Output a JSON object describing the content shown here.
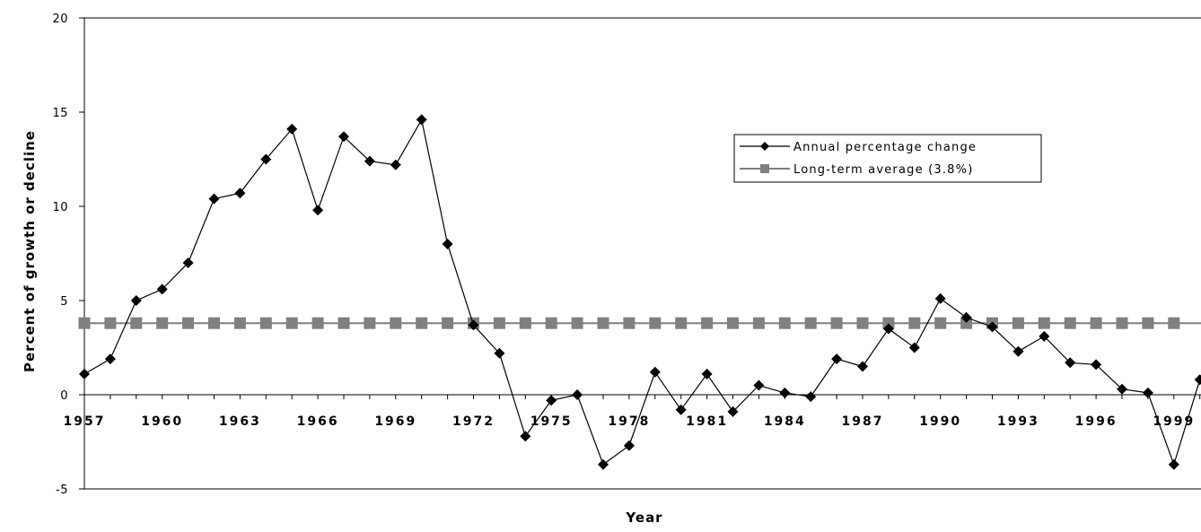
{
  "chart_data": {
    "type": "line",
    "title": "",
    "xlabel": "Year",
    "ylabel": "Percent of growth or decline",
    "ylim": [
      -5,
      20
    ],
    "yticks": [
      -5,
      0,
      5,
      10,
      15,
      20
    ],
    "xticks": [
      1957,
      1960,
      1963,
      1966,
      1969,
      1972,
      1975,
      1978,
      1981,
      1984,
      1987,
      1990,
      1993,
      1996,
      1999
    ],
    "xtick_labels": [
      "1957",
      "1960",
      "1963",
      "1966",
      "1969",
      "1972",
      "1975",
      "1978",
      "1981",
      "1984",
      "1987",
      "1990",
      "1993",
      "1996",
      "1999"
    ],
    "grid": false,
    "legend_position": "right-center",
    "x": [
      1957,
      1958,
      1959,
      1960,
      1961,
      1962,
      1963,
      1964,
      1965,
      1966,
      1967,
      1968,
      1969,
      1970,
      1971,
      1972,
      1973,
      1974,
      1975,
      1976,
      1977,
      1978,
      1979,
      1980,
      1981,
      1982,
      1983,
      1984,
      1985,
      1986,
      1987,
      1988,
      1989,
      1990,
      1991,
      1992,
      1993,
      1994,
      1995,
      1996,
      1997,
      1998,
      1999,
      2000
    ],
    "series": [
      {
        "name": "Annual percentage change",
        "color": "#000000",
        "marker": "diamond",
        "values": [
          1.1,
          1.9,
          5.0,
          5.6,
          7.0,
          10.4,
          10.7,
          12.5,
          14.1,
          9.8,
          13.7,
          12.4,
          12.2,
          14.6,
          8.0,
          3.7,
          2.2,
          -2.2,
          -0.3,
          0.0,
          -3.7,
          -2.7,
          1.2,
          -0.8,
          1.1,
          -0.9,
          0.5,
          0.1,
          -0.1,
          1.9,
          1.5,
          3.5,
          2.5,
          5.1,
          4.1,
          3.6,
          2.3,
          3.1,
          1.7,
          1.6,
          0.3,
          0.1,
          -3.7,
          0.8
        ]
      },
      {
        "name": "Long-term average (3.8%)",
        "color": "#808080",
        "marker": "square",
        "constant": 3.8
      }
    ]
  }
}
